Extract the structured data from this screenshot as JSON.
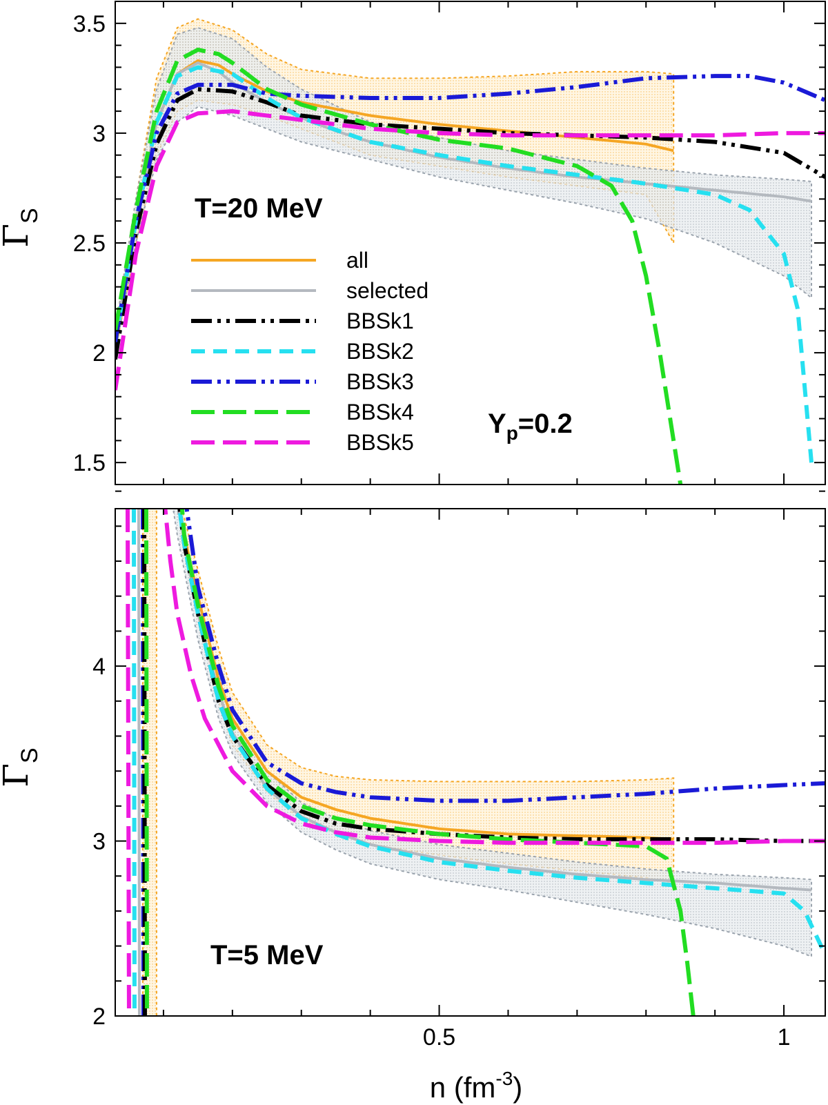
{
  "chart_data": [
    {
      "type": "line",
      "panel": "top",
      "title": "",
      "temperature_label": "T=20 MeV",
      "composition_label_main": "Y",
      "composition_label_sub": "p",
      "composition_label_value": "=0.2",
      "ylabel": "Γ",
      "ylabel_sub": "S",
      "xlabel": "",
      "xlim": [
        0.03,
        1.06
      ],
      "ylim": [
        1.4,
        3.6
      ],
      "x_ticks": [
        0.5,
        1.0
      ],
      "x_tick_labels": [
        "0.5",
        "1"
      ],
      "y_ticks": [
        1.5,
        2.0,
        2.5,
        3.0,
        3.5
      ],
      "y_tick_labels": [
        "1.5",
        "2",
        "2.5",
        "3",
        "3.5"
      ],
      "legend": [
        "all",
        "selected",
        "BBSk1",
        "BBSk2",
        "BBSk3",
        "BBSk4",
        "BBSk5"
      ],
      "bands": [
        {
          "name": "all",
          "color": "#f5a623",
          "x": [
            0.03,
            0.06,
            0.09,
            0.12,
            0.15,
            0.2,
            0.25,
            0.3,
            0.4,
            0.5,
            0.6,
            0.7,
            0.8,
            0.84
          ],
          "upper": [
            2.1,
            2.7,
            3.25,
            3.48,
            3.52,
            3.47,
            3.36,
            3.29,
            3.25,
            3.25,
            3.26,
            3.28,
            3.28,
            3.27
          ],
          "lower": [
            2.0,
            2.5,
            2.9,
            3.1,
            3.15,
            3.13,
            3.08,
            3.02,
            2.9,
            2.85,
            2.8,
            2.76,
            2.72,
            2.5
          ]
        },
        {
          "name": "selected",
          "color": "#9aa3ad",
          "x": [
            0.03,
            0.06,
            0.09,
            0.12,
            0.15,
            0.2,
            0.25,
            0.3,
            0.4,
            0.5,
            0.6,
            0.7,
            0.8,
            0.9,
            1.0,
            1.04
          ],
          "upper": [
            2.1,
            2.7,
            3.2,
            3.45,
            3.48,
            3.43,
            3.3,
            3.2,
            3.05,
            2.98,
            2.92,
            2.88,
            2.84,
            2.81,
            2.79,
            2.78
          ],
          "lower": [
            2.0,
            2.5,
            2.88,
            3.05,
            3.12,
            3.08,
            3.02,
            2.96,
            2.88,
            2.8,
            2.74,
            2.68,
            2.61,
            2.5,
            2.35,
            2.25
          ]
        }
      ],
      "series": [
        {
          "name": "all",
          "color": "#f5a623",
          "style": "solid",
          "x": [
            0.03,
            0.06,
            0.09,
            0.12,
            0.15,
            0.18,
            0.2,
            0.25,
            0.3,
            0.35,
            0.4,
            0.5,
            0.6,
            0.7,
            0.8,
            0.84
          ],
          "y": [
            2.05,
            2.6,
            3.05,
            3.27,
            3.33,
            3.31,
            3.27,
            3.19,
            3.14,
            3.11,
            3.08,
            3.04,
            3.01,
            2.98,
            2.95,
            2.92
          ]
        },
        {
          "name": "selected",
          "color": "#b4b9bf",
          "style": "solid",
          "x": [
            0.03,
            0.06,
            0.09,
            0.12,
            0.15,
            0.18,
            0.2,
            0.25,
            0.3,
            0.35,
            0.4,
            0.5,
            0.6,
            0.7,
            0.8,
            0.9,
            1.0,
            1.04
          ],
          "y": [
            2.05,
            2.6,
            3.05,
            3.27,
            3.32,
            3.28,
            3.23,
            3.14,
            3.07,
            3.01,
            2.96,
            2.89,
            2.84,
            2.8,
            2.77,
            2.74,
            2.71,
            2.69
          ]
        },
        {
          "name": "BBSk1",
          "color": "#000000",
          "style": "dashdotdot",
          "x": [
            0.03,
            0.06,
            0.09,
            0.12,
            0.15,
            0.2,
            0.25,
            0.3,
            0.4,
            0.5,
            0.6,
            0.7,
            0.8,
            0.9,
            1.0,
            1.06
          ],
          "y": [
            1.97,
            2.55,
            2.95,
            3.15,
            3.2,
            3.19,
            3.14,
            3.08,
            3.04,
            3.02,
            3.0,
            2.99,
            2.98,
            2.96,
            2.91,
            2.8
          ]
        },
        {
          "name": "BBSk2",
          "color": "#26e0f0",
          "style": "dashed-short",
          "x": [
            0.03,
            0.06,
            0.09,
            0.12,
            0.15,
            0.2,
            0.25,
            0.3,
            0.4,
            0.5,
            0.6,
            0.7,
            0.8,
            0.9,
            0.95,
            1.0,
            1.02,
            1.04
          ],
          "y": [
            2.05,
            2.6,
            3.05,
            3.26,
            3.3,
            3.27,
            3.16,
            3.07,
            2.96,
            2.9,
            2.85,
            2.81,
            2.77,
            2.72,
            2.65,
            2.45,
            2.2,
            1.5
          ]
        },
        {
          "name": "BBSk3",
          "color": "#1a1ad6",
          "style": "dashdotdot",
          "x": [
            0.03,
            0.06,
            0.09,
            0.12,
            0.15,
            0.2,
            0.25,
            0.3,
            0.4,
            0.5,
            0.6,
            0.7,
            0.8,
            0.9,
            0.95,
            1.0,
            1.06
          ],
          "y": [
            2.05,
            2.6,
            3.0,
            3.18,
            3.22,
            3.22,
            3.18,
            3.17,
            3.16,
            3.16,
            3.18,
            3.21,
            3.25,
            3.26,
            3.26,
            3.23,
            3.15
          ]
        },
        {
          "name": "BBSk4",
          "color": "#22dd22",
          "style": "dashed-long",
          "x": [
            0.03,
            0.06,
            0.09,
            0.12,
            0.15,
            0.18,
            0.2,
            0.25,
            0.3,
            0.4,
            0.5,
            0.6,
            0.7,
            0.75,
            0.78,
            0.8,
            0.82,
            0.84,
            0.85
          ],
          "y": [
            2.1,
            2.65,
            3.1,
            3.33,
            3.38,
            3.36,
            3.32,
            3.2,
            3.13,
            3.04,
            2.97,
            2.93,
            2.85,
            2.76,
            2.6,
            2.35,
            2.0,
            1.6,
            1.4
          ]
        },
        {
          "name": "BBSk5",
          "color": "#ee1adf",
          "style": "dashed-long",
          "x": [
            0.03,
            0.06,
            0.09,
            0.12,
            0.15,
            0.2,
            0.25,
            0.3,
            0.4,
            0.5,
            0.6,
            0.7,
            0.8,
            0.9,
            1.0,
            1.06
          ],
          "y": [
            1.83,
            2.45,
            2.85,
            3.05,
            3.09,
            3.1,
            3.08,
            3.06,
            3.02,
            3.0,
            2.99,
            2.99,
            2.99,
            2.99,
            3.0,
            3.0
          ]
        }
      ]
    },
    {
      "type": "line",
      "panel": "bottom",
      "title": "",
      "temperature_label": "T=5 MeV",
      "ylabel": "Γ",
      "ylabel_sub": "S",
      "xlabel": "n (fm",
      "xlabel_sup": "-3",
      "xlabel_end": ")",
      "xlim": [
        0.03,
        1.06
      ],
      "ylim": [
        2.0,
        4.9
      ],
      "x_ticks": [
        0.5,
        1.0
      ],
      "x_tick_labels": [
        "0.5",
        "1"
      ],
      "y_ticks": [
        2,
        3,
        4
      ],
      "y_tick_labels": [
        "2",
        "3",
        "4"
      ],
      "bands": [
        {
          "name": "all",
          "color": "#f5a623",
          "x": [
            0.12,
            0.13,
            0.15,
            0.18,
            0.2,
            0.25,
            0.3,
            0.35,
            0.4,
            0.5,
            0.6,
            0.7,
            0.8,
            0.84
          ],
          "upper": [
            5.0,
            4.85,
            4.55,
            4.1,
            3.85,
            3.55,
            3.42,
            3.37,
            3.35,
            3.34,
            3.34,
            3.34,
            3.35,
            3.36
          ],
          "lower": [
            5.0,
            4.7,
            4.3,
            3.8,
            3.55,
            3.28,
            3.12,
            3.05,
            2.98,
            2.92,
            2.87,
            2.83,
            2.79,
            2.76
          ]
        },
        {
          "name": "selected",
          "color": "#9aa3ad",
          "x": [
            0.11,
            0.12,
            0.15,
            0.18,
            0.2,
            0.25,
            0.3,
            0.35,
            0.4,
            0.5,
            0.6,
            0.7,
            0.8,
            0.9,
            1.0,
            1.04
          ],
          "upper": [
            5.0,
            4.9,
            4.35,
            3.95,
            3.7,
            3.4,
            3.22,
            3.13,
            3.06,
            2.98,
            2.93,
            2.88,
            2.84,
            2.81,
            2.79,
            2.78
          ],
          "lower": [
            5.0,
            4.75,
            4.15,
            3.7,
            3.5,
            3.22,
            3.05,
            2.95,
            2.87,
            2.78,
            2.72,
            2.65,
            2.58,
            2.5,
            2.4,
            2.34
          ]
        },
        {
          "name": "all-vertical",
          "color": "#f5a623",
          "x": [
            0.07,
            0.09
          ],
          "upper": [
            5.0,
            5.0
          ],
          "lower": [
            2.0,
            2.0
          ]
        }
      ],
      "series": [
        {
          "name": "all",
          "color": "#f5a623",
          "style": "solid",
          "x": [
            0.12,
            0.13,
            0.15,
            0.18,
            0.2,
            0.25,
            0.3,
            0.35,
            0.4,
            0.5,
            0.6,
            0.7,
            0.8,
            0.84
          ],
          "y": [
            5.0,
            4.75,
            4.4,
            3.92,
            3.7,
            3.4,
            3.25,
            3.18,
            3.13,
            3.07,
            3.04,
            3.03,
            3.02,
            3.01
          ]
        },
        {
          "name": "selected",
          "color": "#b4b9bf",
          "style": "solid",
          "x": [
            0.12,
            0.13,
            0.15,
            0.18,
            0.2,
            0.25,
            0.3,
            0.35,
            0.4,
            0.5,
            0.6,
            0.7,
            0.8,
            0.9,
            1.0,
            1.04
          ],
          "y": [
            5.0,
            4.7,
            4.3,
            3.85,
            3.62,
            3.3,
            3.14,
            3.05,
            2.98,
            2.9,
            2.85,
            2.81,
            2.78,
            2.76,
            2.73,
            2.72
          ]
        },
        {
          "name": "BBSk1",
          "color": "#000000",
          "style": "dashdotdot",
          "x": [
            0.12,
            0.13,
            0.15,
            0.18,
            0.2,
            0.25,
            0.3,
            0.35,
            0.4,
            0.5,
            0.6,
            0.7,
            0.8,
            0.9,
            1.0,
            1.06
          ],
          "y": [
            5.0,
            4.7,
            4.3,
            3.8,
            3.6,
            3.32,
            3.17,
            3.1,
            3.07,
            3.04,
            3.02,
            3.01,
            3.01,
            3.01,
            3.0,
            3.0
          ]
        },
        {
          "name": "BBSk2",
          "color": "#26e0f0",
          "style": "dashed-short",
          "x": [
            0.12,
            0.13,
            0.15,
            0.18,
            0.2,
            0.25,
            0.3,
            0.35,
            0.4,
            0.5,
            0.6,
            0.7,
            0.8,
            0.9,
            1.0,
            1.03,
            1.06
          ],
          "y": [
            5.0,
            4.7,
            4.3,
            3.8,
            3.6,
            3.3,
            3.13,
            3.04,
            2.97,
            2.88,
            2.83,
            2.79,
            2.76,
            2.73,
            2.7,
            2.6,
            2.35
          ]
        },
        {
          "name": "BBSk3",
          "color": "#1a1ad6",
          "style": "dashdotdot",
          "x": [
            0.13,
            0.15,
            0.18,
            0.2,
            0.25,
            0.3,
            0.35,
            0.4,
            0.5,
            0.6,
            0.7,
            0.8,
            0.9,
            1.0,
            1.06
          ],
          "y": [
            5.0,
            4.45,
            4.0,
            3.75,
            3.45,
            3.33,
            3.28,
            3.25,
            3.23,
            3.23,
            3.25,
            3.27,
            3.3,
            3.32,
            3.33
          ]
        },
        {
          "name": "BBSk4",
          "color": "#22dd22",
          "style": "dashed-long",
          "x": [
            0.125,
            0.13,
            0.15,
            0.18,
            0.2,
            0.25,
            0.3,
            0.35,
            0.4,
            0.5,
            0.6,
            0.7,
            0.8,
            0.83,
            0.85,
            0.86,
            0.87
          ],
          "y": [
            5.0,
            4.75,
            4.35,
            3.88,
            3.66,
            3.35,
            3.2,
            3.13,
            3.09,
            3.04,
            3.01,
            2.99,
            2.97,
            2.9,
            2.6,
            2.3,
            1.95
          ]
        },
        {
          "name": "BBSk5",
          "color": "#ee1adf",
          "style": "dashed-long",
          "x": [
            0.1,
            0.11,
            0.12,
            0.14,
            0.16,
            0.2,
            0.25,
            0.3,
            0.35,
            0.4,
            0.5,
            0.6,
            0.7,
            0.8,
            0.9,
            1.0,
            1.06
          ],
          "y": [
            5.0,
            4.6,
            4.3,
            3.95,
            3.7,
            3.4,
            3.2,
            3.1,
            3.05,
            3.02,
            3.0,
            2.99,
            2.99,
            2.99,
            2.99,
            3.0,
            3.0
          ]
        },
        {
          "name": "BBSk5-low",
          "color": "#ee1adf",
          "style": "dashed-long",
          "x": [
            0.048,
            0.05
          ],
          "y": [
            4.9,
            2.0
          ]
        },
        {
          "name": "BBSk2-low",
          "color": "#26e0f0",
          "style": "dashed-short",
          "x": [
            0.057,
            0.058
          ],
          "y": [
            4.9,
            2.0
          ]
        },
        {
          "name": "selected-low",
          "color": "#b4b9bf",
          "style": "solid",
          "x": [
            0.064,
            0.065
          ],
          "y": [
            4.9,
            2.0
          ]
        },
        {
          "name": "BBSk3-low",
          "color": "#1a1ad6",
          "style": "dashdotdot",
          "x": [
            0.07,
            0.071
          ],
          "y": [
            4.9,
            2.0
          ]
        },
        {
          "name": "BBSk1-low",
          "color": "#000000",
          "style": "dashdotdot",
          "x": [
            0.072,
            0.073
          ],
          "y": [
            4.9,
            2.0
          ]
        },
        {
          "name": "BBSk4-low",
          "color": "#22dd22",
          "style": "dashed-long",
          "x": [
            0.075,
            0.076
          ],
          "y": [
            4.9,
            2.0
          ]
        }
      ]
    }
  ]
}
